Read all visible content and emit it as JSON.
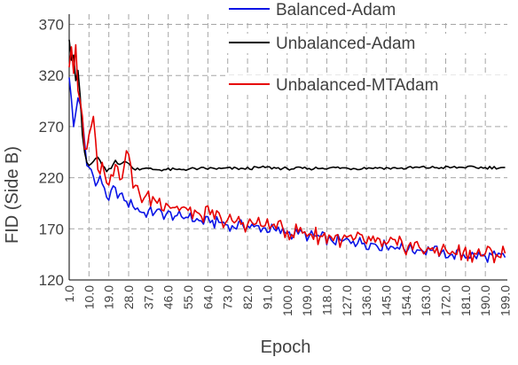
{
  "chart_data": {
    "type": "line",
    "title": "",
    "xlabel": "Epoch",
    "ylabel": "FID (Side B)",
    "xlim": [
      1,
      200
    ],
    "ylim": [
      120,
      380
    ],
    "yticks": [
      120,
      170,
      220,
      270,
      320,
      370
    ],
    "xticks": [
      "1.0",
      "10.0",
      "19.0",
      "28.0",
      "37.0",
      "46.0",
      "55.0",
      "64.0",
      "73.0",
      "82.0",
      "91.0",
      "100.0",
      "109.0",
      "118.0",
      "127.0",
      "136.0",
      "145.0",
      "154.0",
      "163.0",
      "172.0",
      "181.0",
      "190.0",
      "199.0"
    ],
    "grid": "dashed",
    "legend_position": "top-right",
    "series": [
      {
        "name": "Balanced-Adam",
        "color": "#0a14e6",
        "x": [
          1,
          3,
          5,
          7,
          9,
          11,
          13,
          15,
          17,
          19,
          21,
          23,
          25,
          27,
          30,
          35,
          40,
          45,
          50,
          55,
          60,
          65,
          70,
          75,
          80,
          85,
          90,
          95,
          100,
          105,
          110,
          115,
          120,
          125,
          130,
          135,
          140,
          145,
          150,
          155,
          160,
          165,
          170,
          175,
          180,
          185,
          190,
          195,
          199
        ],
        "y": [
          318,
          270,
          298,
          278,
          232,
          228,
          212,
          222,
          210,
          198,
          212,
          200,
          205,
          197,
          192,
          186,
          186,
          184,
          183,
          181,
          178,
          176,
          176,
          173,
          173,
          172,
          171,
          168,
          166,
          165,
          163,
          162,
          159,
          158,
          158,
          156,
          155,
          153,
          152,
          150,
          149,
          149,
          147,
          145,
          145,
          144,
          143,
          143,
          142
        ]
      },
      {
        "name": "Unbalanced-Adam",
        "color": "#000000",
        "x": [
          1,
          2,
          3,
          4,
          5,
          6,
          7,
          8,
          9,
          10,
          12,
          14,
          16,
          18,
          20,
          22,
          24,
          26,
          28,
          30,
          35,
          40,
          50,
          60,
          70,
          80,
          90,
          100,
          110,
          120,
          130,
          140,
          150,
          160,
          170,
          180,
          190,
          199
        ],
        "y": [
          355,
          335,
          340,
          315,
          325,
          300,
          262,
          245,
          235,
          232,
          236,
          240,
          232,
          226,
          229,
          237,
          233,
          236,
          234,
          229,
          229,
          228,
          228,
          229,
          229,
          229,
          230,
          229,
          229,
          230,
          229,
          230,
          229,
          230,
          230,
          230,
          230,
          230
        ]
      },
      {
        "name": "Unbalanced-MTAdam",
        "color": "#e60000",
        "x": [
          1,
          2,
          3,
          4,
          5,
          6,
          7,
          8,
          9,
          10,
          11,
          12,
          14,
          16,
          18,
          20,
          22,
          24,
          26,
          28,
          30,
          35,
          40,
          45,
          50,
          55,
          60,
          65,
          70,
          75,
          80,
          85,
          90,
          95,
          100,
          105,
          110,
          115,
          120,
          125,
          130,
          135,
          140,
          145,
          150,
          155,
          160,
          165,
          170,
          175,
          180,
          185,
          190,
          195,
          199
        ],
        "y": [
          328,
          348,
          322,
          350,
          305,
          295,
          280,
          248,
          248,
          262,
          270,
          280,
          228,
          235,
          215,
          223,
          233,
          218,
          232,
          243,
          210,
          200,
          198,
          195,
          192,
          188,
          185,
          184,
          180,
          178,
          176,
          174,
          173,
          170,
          168,
          167,
          165,
          163,
          162,
          160,
          159,
          158,
          157,
          155,
          154,
          153,
          152,
          150,
          149,
          148,
          147,
          146,
          146,
          145,
          146
        ]
      }
    ]
  }
}
